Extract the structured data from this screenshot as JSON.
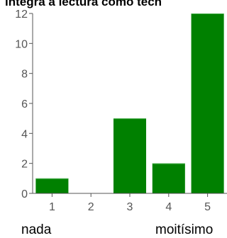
{
  "colors": {
    "bar": "#008000",
    "bar_highlight": "#4caf50",
    "axis": "#555555",
    "text": "#000000"
  },
  "chart_data": {
    "type": "bar",
    "title": "integra a lectura como tecn",
    "categories": [
      "1",
      "2",
      "3",
      "4",
      "5"
    ],
    "values": [
      1,
      0,
      5,
      2,
      12
    ],
    "ylim": [
      0,
      12
    ],
    "yticks": [
      0,
      2,
      4,
      6,
      8,
      10,
      12
    ],
    "grid": false,
    "scale_labels": {
      "low": "nada",
      "high": "moitísimo"
    }
  }
}
